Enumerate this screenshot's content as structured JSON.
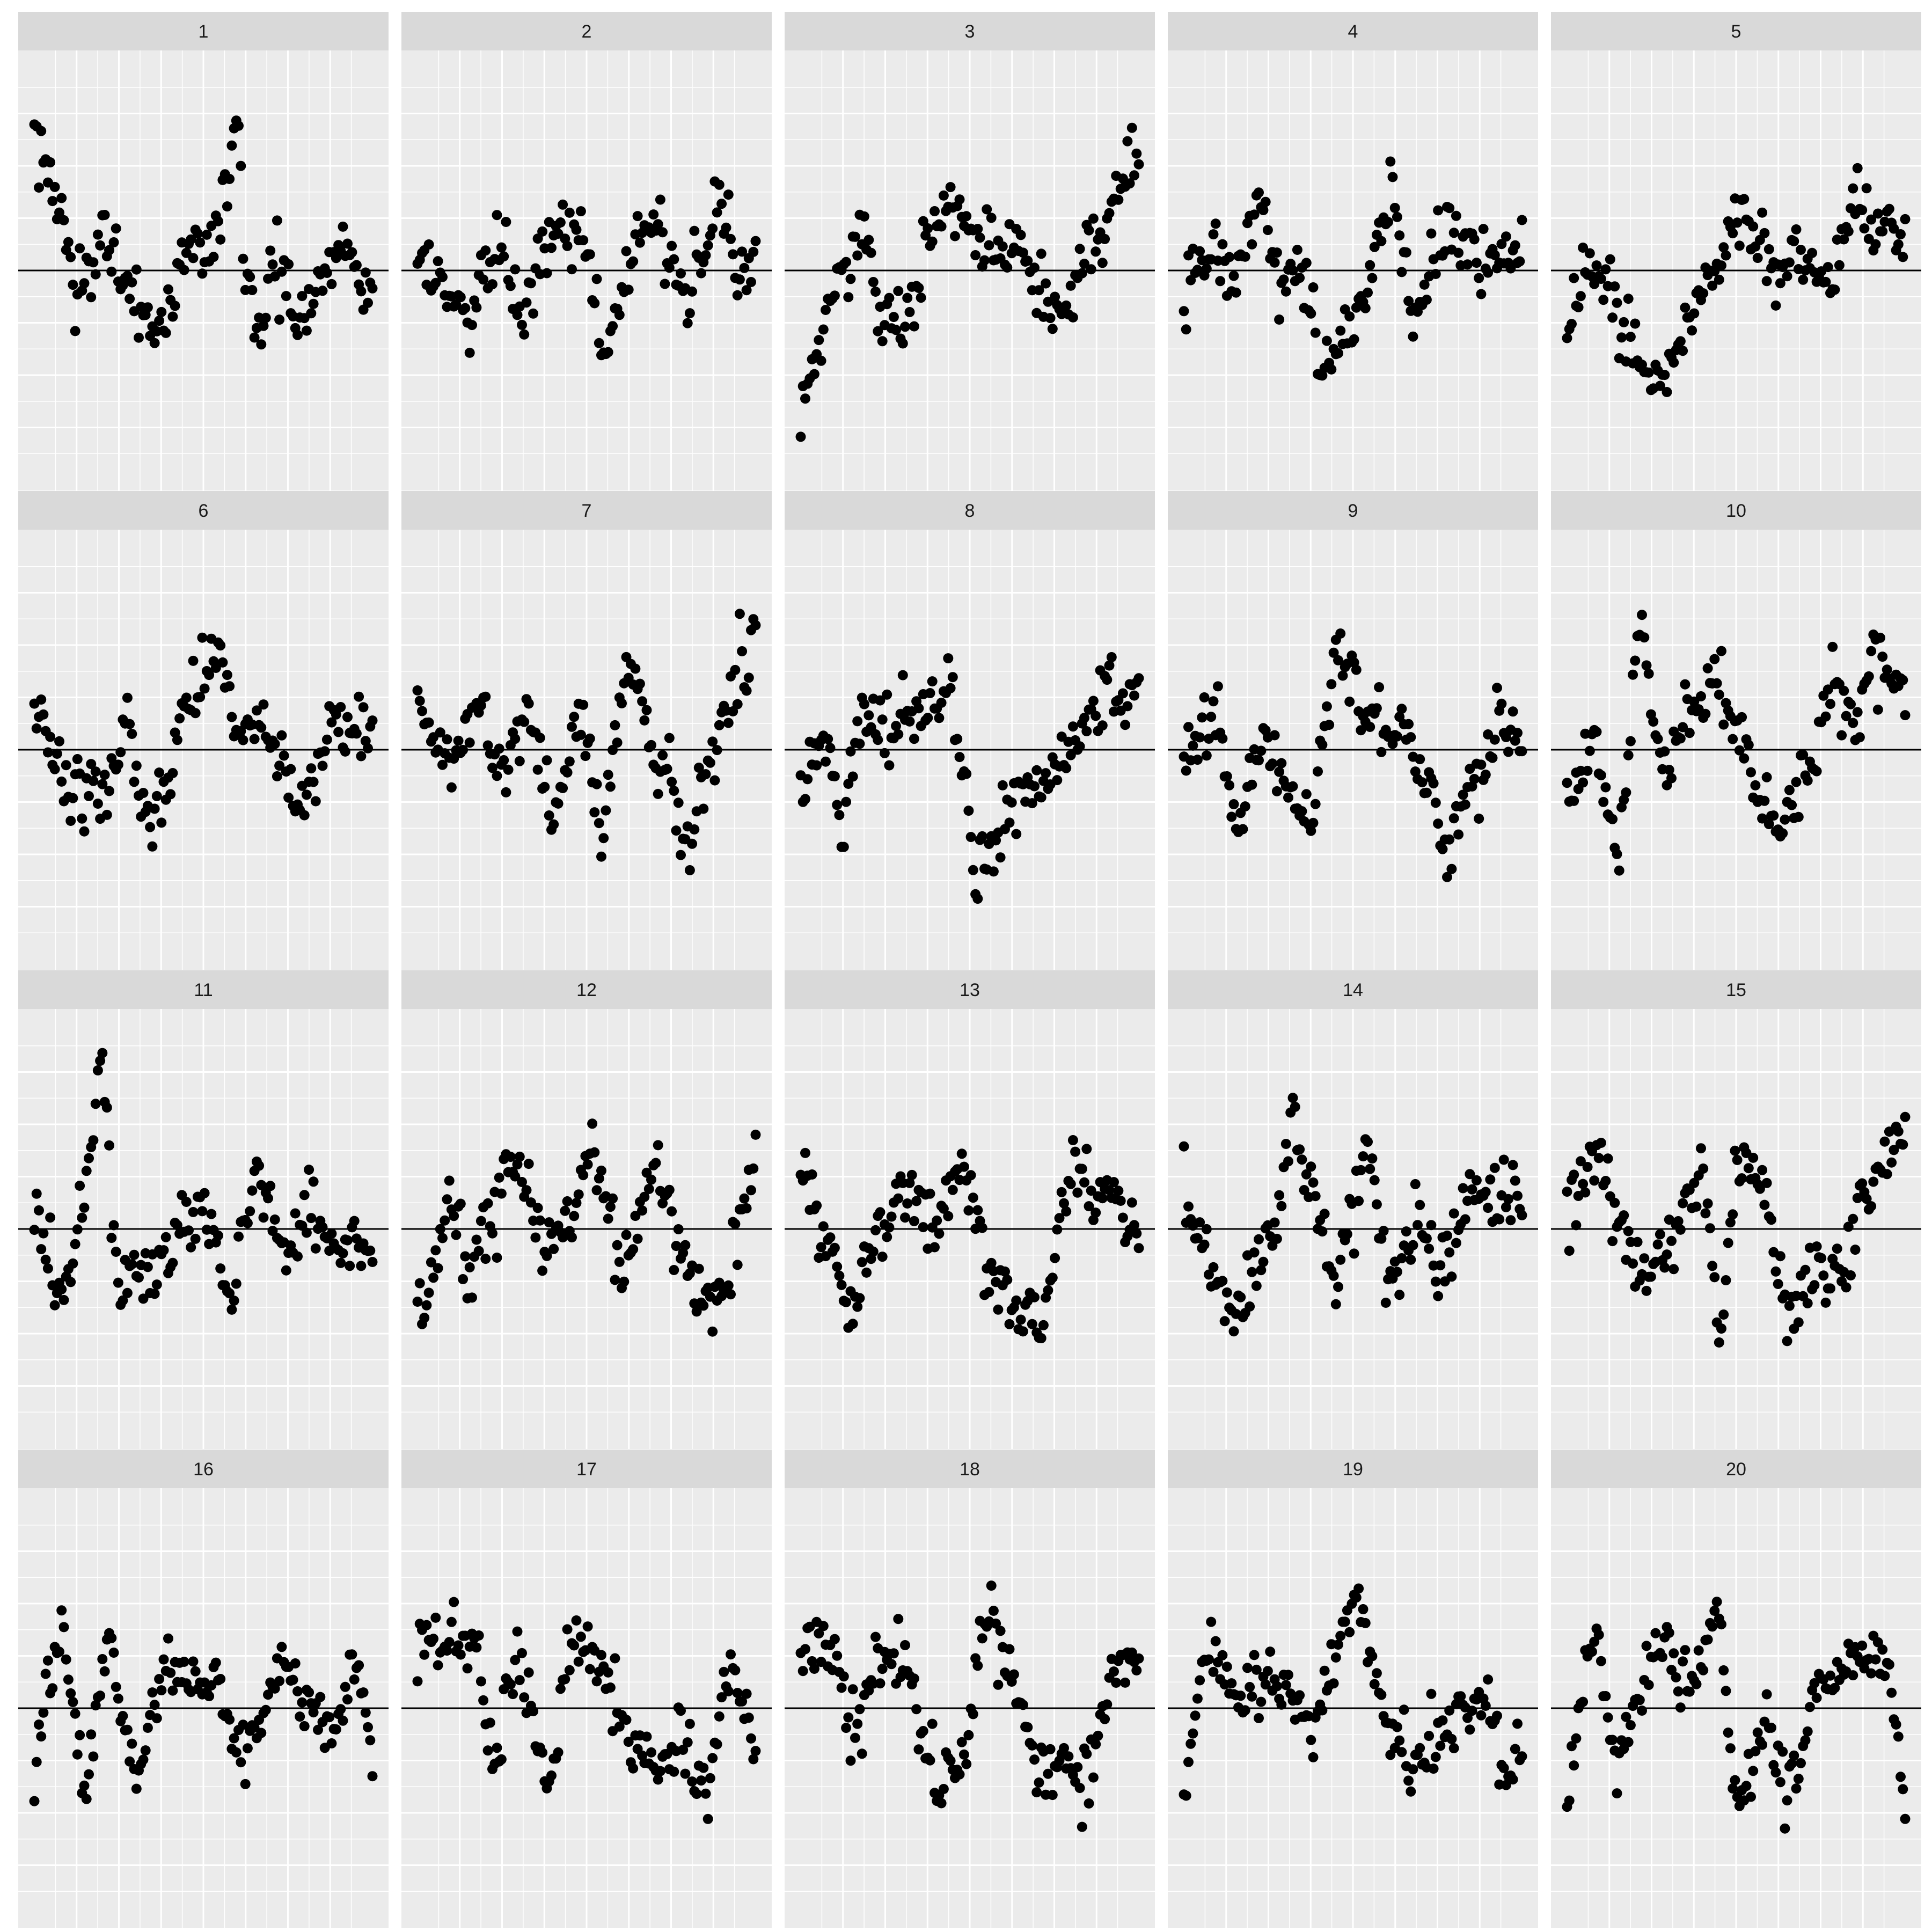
{
  "figure": {
    "background": "#ffffff",
    "strip_fill": "#d9d9d9",
    "panel_fill": "#ebebeb",
    "grid_color": "#ffffff",
    "point_color": "#000000",
    "reference_line_color": "#000000"
  },
  "chart_data": {
    "type": "scatter",
    "layout": "facet_wrap",
    "ncol": 5,
    "nrow": 4,
    "reference_line_y": 0,
    "xlim": [
      0,
      1
    ],
    "ylim": [
      -3.6,
      3.6
    ],
    "grid": true,
    "axis_text_shown": false,
    "points_per_panel": 150,
    "panels": [
      {
        "label": "1",
        "segments": [
          [
            0,
            2.3
          ],
          [
            0.08,
            0.9
          ],
          [
            0.12,
            -0.6
          ],
          [
            0.2,
            0.7
          ],
          [
            0.28,
            -0.4
          ],
          [
            0.38,
            -1.0
          ],
          [
            0.46,
            0.4
          ],
          [
            0.5,
            0.2
          ],
          [
            0.56,
            1.1
          ],
          [
            0.6,
            2.6
          ],
          [
            0.62,
            0.3
          ],
          [
            0.67,
            -1.4
          ],
          [
            0.7,
            0.2
          ],
          [
            0.78,
            -0.8
          ],
          [
            0.85,
            0.0
          ],
          [
            0.92,
            0.4
          ],
          [
            0.95,
            0.1
          ],
          [
            1,
            -0.4
          ]
        ]
      },
      {
        "label": "2",
        "segments": [
          [
            0,
            0.2
          ],
          [
            0.15,
            -0.8
          ],
          [
            0.25,
            0.6
          ],
          [
            0.3,
            -0.7
          ],
          [
            0.42,
            0.9
          ],
          [
            0.5,
            0.6
          ],
          [
            0.55,
            -1.6
          ],
          [
            0.62,
            0.2
          ],
          [
            0.7,
            0.9
          ],
          [
            0.8,
            -0.6
          ],
          [
            0.9,
            1.3
          ],
          [
            0.95,
            -0.2
          ],
          [
            1,
            0.2
          ]
        ]
      },
      {
        "label": "3",
        "segments": [
          [
            0,
            -2.3
          ],
          [
            0.1,
            -0.4
          ],
          [
            0.18,
            0.7
          ],
          [
            0.22,
            -0.4
          ],
          [
            0.3,
            -1.0
          ],
          [
            0.38,
            0.6
          ],
          [
            0.45,
            1.0
          ],
          [
            0.55,
            0.5
          ],
          [
            0.65,
            0.1
          ],
          [
            0.75,
            -0.8
          ],
          [
            0.88,
            0.5
          ],
          [
            1,
            2.0
          ]
        ]
      },
      {
        "label": "4",
        "segments": [
          [
            0,
            -0.3
          ],
          [
            0.08,
            0.7
          ],
          [
            0.15,
            -0.3
          ],
          [
            0.22,
            1.4
          ],
          [
            0.28,
            -0.1
          ],
          [
            0.35,
            0.0
          ],
          [
            0.42,
            -1.5
          ],
          [
            0.52,
            -0.6
          ],
          [
            0.62,
            1.2
          ],
          [
            0.68,
            -0.8
          ],
          [
            0.78,
            0.8
          ],
          [
            0.88,
            0.2
          ],
          [
            1,
            0.5
          ]
        ]
      },
      {
        "label": "5",
        "segments": [
          [
            0,
            -0.8
          ],
          [
            0.1,
            0.0
          ],
          [
            0.2,
            -1.4
          ],
          [
            0.28,
            -1.8
          ],
          [
            0.35,
            -0.8
          ],
          [
            0.45,
            0.3
          ],
          [
            0.52,
            1.1
          ],
          [
            0.6,
            -0.2
          ],
          [
            0.68,
            0.3
          ],
          [
            0.78,
            -0.2
          ],
          [
            0.85,
            1.3
          ],
          [
            0.92,
            0.6
          ],
          [
            1,
            0.5
          ]
        ]
      },
      {
        "label": "6",
        "segments": [
          [
            0,
            0.8
          ],
          [
            0.08,
            -0.7
          ],
          [
            0.22,
            -0.7
          ],
          [
            0.28,
            0.6
          ],
          [
            0.32,
            -1.2
          ],
          [
            0.4,
            -0.6
          ],
          [
            0.45,
            0.9
          ],
          [
            0.55,
            1.5
          ],
          [
            0.6,
            0.4
          ],
          [
            0.65,
            0.5
          ],
          [
            0.72,
            -0.2
          ],
          [
            0.8,
            -1.0
          ],
          [
            0.88,
            0.5
          ],
          [
            1,
            0.3
          ]
        ]
      },
      {
        "label": "7",
        "segments": [
          [
            0,
            0.8
          ],
          [
            0.1,
            -0.3
          ],
          [
            0.18,
            0.6
          ],
          [
            0.25,
            -0.5
          ],
          [
            0.32,
            0.7
          ],
          [
            0.4,
            -1.2
          ],
          [
            0.48,
            0.7
          ],
          [
            0.55,
            -1.1
          ],
          [
            0.62,
            1.5
          ],
          [
            0.7,
            0.0
          ],
          [
            0.8,
            -1.5
          ],
          [
            0.88,
            0.2
          ],
          [
            1,
            1.9
          ]
        ]
      },
      {
        "label": "8",
        "segments": [
          [
            0,
            -0.8
          ],
          [
            0.08,
            0.3
          ],
          [
            0.12,
            -1.6
          ],
          [
            0.18,
            0.8
          ],
          [
            0.25,
            0.3
          ],
          [
            0.32,
            0.7
          ],
          [
            0.45,
            1.0
          ],
          [
            0.52,
            -2.0
          ],
          [
            0.62,
            -1.1
          ],
          [
            0.75,
            -0.3
          ],
          [
            0.85,
            0.4
          ],
          [
            0.92,
            1.2
          ],
          [
            1,
            1.0
          ]
        ]
      },
      {
        "label": "9",
        "segments": [
          [
            0,
            0.0
          ],
          [
            0.1,
            0.6
          ],
          [
            0.15,
            -1.2
          ],
          [
            0.25,
            0.2
          ],
          [
            0.3,
            -0.6
          ],
          [
            0.38,
            -1.2
          ],
          [
            0.45,
            1.9
          ],
          [
            0.55,
            0.5
          ],
          [
            0.65,
            0.3
          ],
          [
            0.72,
            -0.5
          ],
          [
            0.78,
            -1.8
          ],
          [
            0.85,
            -0.4
          ],
          [
            0.95,
            0.3
          ],
          [
            1,
            0.2
          ]
        ]
      },
      {
        "label": "10",
        "segments": [
          [
            0,
            -0.9
          ],
          [
            0.08,
            0.2
          ],
          [
            0.15,
            -2.0
          ],
          [
            0.22,
            2.2
          ],
          [
            0.28,
            -0.5
          ],
          [
            0.35,
            0.6
          ],
          [
            0.45,
            1.1
          ],
          [
            0.55,
            -0.4
          ],
          [
            0.62,
            -1.4
          ],
          [
            0.72,
            -0.1
          ],
          [
            0.78,
            1.3
          ],
          [
            0.85,
            0.2
          ],
          [
            0.9,
            1.6
          ],
          [
            1,
            0.8
          ]
        ]
      },
      {
        "label": "11",
        "segments": [
          [
            0,
            0.5
          ],
          [
            0.08,
            -1.2
          ],
          [
            0.15,
            0.3
          ],
          [
            0.2,
            3.0
          ],
          [
            0.25,
            -1.0
          ],
          [
            0.35,
            -0.7
          ],
          [
            0.45,
            0.3
          ],
          [
            0.52,
            0.2
          ],
          [
            0.58,
            -1.4
          ],
          [
            0.65,
            1.1
          ],
          [
            0.75,
            -0.6
          ],
          [
            0.82,
            0.3
          ],
          [
            0.9,
            -0.4
          ],
          [
            1,
            -0.2
          ]
        ]
      },
      {
        "label": "12",
        "segments": [
          [
            0,
            -1.6
          ],
          [
            0.1,
            0.4
          ],
          [
            0.15,
            -0.8
          ],
          [
            0.3,
            1.3
          ],
          [
            0.38,
            -0.4
          ],
          [
            0.45,
            0.0
          ],
          [
            0.52,
            1.6
          ],
          [
            0.6,
            -0.8
          ],
          [
            0.7,
            1.1
          ],
          [
            0.8,
            -0.8
          ],
          [
            0.9,
            -1.1
          ],
          [
            1,
            1.2
          ]
        ]
      },
      {
        "label": "13",
        "segments": [
          [
            0,
            0.9
          ],
          [
            0.08,
            -0.4
          ],
          [
            0.15,
            -1.4
          ],
          [
            0.22,
            0.0
          ],
          [
            0.3,
            0.7
          ],
          [
            0.4,
            0.0
          ],
          [
            0.48,
            1.4
          ],
          [
            0.55,
            -0.6
          ],
          [
            0.65,
            -1.3
          ],
          [
            0.72,
            -1.6
          ],
          [
            0.8,
            1.0
          ],
          [
            0.9,
            0.6
          ],
          [
            1,
            -0.1
          ]
        ]
      },
      {
        "label": "14",
        "segments": [
          [
            0,
            0.7
          ],
          [
            0.08,
            -0.6
          ],
          [
            0.15,
            -1.2
          ],
          [
            0.25,
            -0.3
          ],
          [
            0.32,
            1.6
          ],
          [
            0.4,
            0.3
          ],
          [
            0.45,
            -0.9
          ],
          [
            0.55,
            1.6
          ],
          [
            0.6,
            -1.0
          ],
          [
            0.7,
            0.3
          ],
          [
            0.75,
            -0.8
          ],
          [
            0.85,
            0.7
          ],
          [
            0.95,
            0.5
          ],
          [
            1,
            0.2
          ]
        ]
      },
      {
        "label": "15",
        "segments": [
          [
            0,
            0.3
          ],
          [
            0.08,
            1.1
          ],
          [
            0.15,
            0.3
          ],
          [
            0.22,
            -0.8
          ],
          [
            0.3,
            -0.2
          ],
          [
            0.4,
            1.3
          ],
          [
            0.45,
            -1.8
          ],
          [
            0.5,
            1.0
          ],
          [
            0.58,
            0.8
          ],
          [
            0.65,
            -1.5
          ],
          [
            0.72,
            -0.6
          ],
          [
            0.8,
            -0.8
          ],
          [
            0.9,
            0.8
          ],
          [
            1,
            1.8
          ]
        ]
      },
      {
        "label": "16",
        "segments": [
          [
            0,
            -0.6
          ],
          [
            0.08,
            1.3
          ],
          [
            0.15,
            -1.2
          ],
          [
            0.22,
            1.2
          ],
          [
            0.3,
            -1.1
          ],
          [
            0.38,
            0.7
          ],
          [
            0.45,
            0.7
          ],
          [
            0.55,
            0.1
          ],
          [
            0.62,
            -1.0
          ],
          [
            0.72,
            0.8
          ],
          [
            0.8,
            0.2
          ],
          [
            0.88,
            -0.6
          ],
          [
            0.95,
            0.9
          ],
          [
            1,
            -0.8
          ]
        ]
      },
      {
        "label": "17",
        "segments": [
          [
            0,
            1.0
          ],
          [
            0.1,
            1.3
          ],
          [
            0.18,
            0.8
          ],
          [
            0.22,
            -1.0
          ],
          [
            0.3,
            1.0
          ],
          [
            0.38,
            -1.4
          ],
          [
            0.45,
            0.9
          ],
          [
            0.52,
            1.0
          ],
          [
            0.6,
            -0.2
          ],
          [
            0.7,
            -1.0
          ],
          [
            0.78,
            -0.8
          ],
          [
            0.85,
            -1.5
          ],
          [
            0.92,
            0.8
          ],
          [
            1,
            -0.5
          ]
        ]
      },
      {
        "label": "18",
        "segments": [
          [
            0,
            0.9
          ],
          [
            0.08,
            1.2
          ],
          [
            0.15,
            -0.3
          ],
          [
            0.25,
            0.9
          ],
          [
            0.32,
            0.6
          ],
          [
            0.4,
            -1.3
          ],
          [
            0.48,
            -0.8
          ],
          [
            0.55,
            1.6
          ],
          [
            0.62,
            0.7
          ],
          [
            0.7,
            -1.2
          ],
          [
            0.78,
            -1.0
          ],
          [
            0.85,
            -1.2
          ],
          [
            0.92,
            0.5
          ],
          [
            1,
            0.6
          ]
        ]
      },
      {
        "label": "19",
        "segments": [
          [
            0,
            -1.2
          ],
          [
            0.08,
            1.2
          ],
          [
            0.15,
            0.2
          ],
          [
            0.22,
            0.4
          ],
          [
            0.3,
            0.5
          ],
          [
            0.38,
            -0.5
          ],
          [
            0.45,
            0.9
          ],
          [
            0.52,
            1.9
          ],
          [
            0.6,
            -0.4
          ],
          [
            0.7,
            -0.9
          ],
          [
            0.8,
            -0.1
          ],
          [
            0.88,
            0.4
          ],
          [
            0.95,
            -1.2
          ],
          [
            1,
            -0.8
          ]
        ]
      },
      {
        "label": "20",
        "segments": [
          [
            0,
            -1.3
          ],
          [
            0.08,
            1.4
          ],
          [
            0.15,
            -0.8
          ],
          [
            0.22,
            0.3
          ],
          [
            0.3,
            1.2
          ],
          [
            0.38,
            0.3
          ],
          [
            0.45,
            1.8
          ],
          [
            0.5,
            -1.9
          ],
          [
            0.58,
            -0.1
          ],
          [
            0.65,
            -1.4
          ],
          [
            0.72,
            0.1
          ],
          [
            0.8,
            0.5
          ],
          [
            0.88,
            1.0
          ],
          [
            0.95,
            0.9
          ],
          [
            1,
            -1.6
          ]
        ]
      }
    ]
  }
}
